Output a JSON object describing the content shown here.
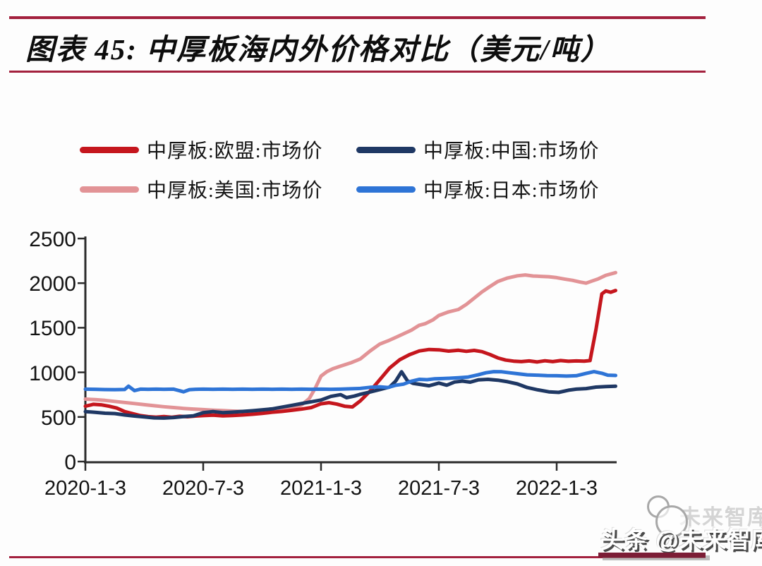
{
  "figure": {
    "title": "图表 45: 中厚板海内外价格对比（美元/吨）",
    "watermark": {
      "prefix": "头条",
      "handle": "@未来智库",
      "ghost": "未来智库"
    },
    "colors": {
      "rule": "#a3213e",
      "watermark_line": "#7c1d36",
      "axis": "#2b2b2b"
    }
  },
  "chart_data": {
    "type": "line",
    "title": "中厚板海内外价格对比",
    "unit": "美元/吨",
    "grid": false,
    "legend_position": "top",
    "x_axis": {
      "tick_labels": [
        "2020-1-3",
        "2020-7-3",
        "2021-1-3",
        "2021-7-3",
        "2022-1-3"
      ],
      "tick_months": [
        0,
        6,
        12,
        18,
        24
      ],
      "range_months": [
        0,
        27
      ]
    },
    "y_axis": {
      "ticks": [
        0,
        500,
        1000,
        1500,
        2000,
        2500
      ],
      "tick_labels": [
        "0",
        "500",
        "1000",
        "1500",
        "2000",
        "2500"
      ],
      "range": [
        0,
        2500
      ]
    },
    "z_order": [
      2,
      0,
      1,
      3
    ],
    "series": [
      {
        "id": "eu",
        "name": "中厚板:欧盟:市场价",
        "color": "#c5161d",
        "points": [
          [
            0,
            620
          ],
          [
            0.4,
            642
          ],
          [
            0.8,
            636
          ],
          [
            1.2,
            620
          ],
          [
            1.6,
            600
          ],
          [
            2,
            560
          ],
          [
            2.4,
            538
          ],
          [
            2.8,
            515
          ],
          [
            3.2,
            503
          ],
          [
            3.6,
            498
          ],
          [
            4,
            505
          ],
          [
            4.4,
            497
          ],
          [
            4.8,
            507
          ],
          [
            5.2,
            502
          ],
          [
            5.6,
            510
          ],
          [
            6,
            515
          ],
          [
            6.5,
            520
          ],
          [
            7,
            512
          ],
          [
            7.5,
            517
          ],
          [
            8,
            522
          ],
          [
            8.5,
            530
          ],
          [
            9,
            540
          ],
          [
            9.5,
            552
          ],
          [
            10,
            562
          ],
          [
            10.5,
            574
          ],
          [
            11,
            588
          ],
          [
            11.5,
            605
          ],
          [
            12,
            648
          ],
          [
            12.4,
            660
          ],
          [
            12.8,
            644
          ],
          [
            13.2,
            620
          ],
          [
            13.6,
            612
          ],
          [
            14,
            680
          ],
          [
            14.5,
            790
          ],
          [
            15,
            920
          ],
          [
            15.5,
            1050
          ],
          [
            16,
            1140
          ],
          [
            16.5,
            1198
          ],
          [
            17,
            1240
          ],
          [
            17.5,
            1256
          ],
          [
            18,
            1252
          ],
          [
            18.5,
            1238
          ],
          [
            19,
            1248
          ],
          [
            19.4,
            1236
          ],
          [
            19.8,
            1246
          ],
          [
            20.2,
            1232
          ],
          [
            20.6,
            1200
          ],
          [
            21,
            1162
          ],
          [
            21.4,
            1138
          ],
          [
            21.8,
            1126
          ],
          [
            22.2,
            1120
          ],
          [
            22.6,
            1128
          ],
          [
            23,
            1116
          ],
          [
            23.4,
            1130
          ],
          [
            23.8,
            1120
          ],
          [
            24.2,
            1132
          ],
          [
            24.6,
            1124
          ],
          [
            25,
            1128
          ],
          [
            25.4,
            1126
          ],
          [
            25.7,
            1132
          ],
          [
            26,
            1480
          ],
          [
            26.3,
            1880
          ],
          [
            26.5,
            1912
          ],
          [
            26.75,
            1898
          ],
          [
            27,
            1918
          ]
        ]
      },
      {
        "id": "china",
        "name": "中厚板:中国:市场价",
        "color": "#1f3864",
        "points": [
          [
            0,
            560
          ],
          [
            0.5,
            552
          ],
          [
            1,
            542
          ],
          [
            1.5,
            538
          ],
          [
            2,
            522
          ],
          [
            2.5,
            510
          ],
          [
            3,
            500
          ],
          [
            3.5,
            490
          ],
          [
            4,
            487
          ],
          [
            4.5,
            494
          ],
          [
            5,
            504
          ],
          [
            5.5,
            512
          ],
          [
            6,
            548
          ],
          [
            6.5,
            560
          ],
          [
            7,
            548
          ],
          [
            7.5,
            554
          ],
          [
            8,
            562
          ],
          [
            8.5,
            570
          ],
          [
            9,
            580
          ],
          [
            9.5,
            590
          ],
          [
            10,
            610
          ],
          [
            10.5,
            630
          ],
          [
            11,
            650
          ],
          [
            11.5,
            670
          ],
          [
            12,
            690
          ],
          [
            12.5,
            730
          ],
          [
            13,
            750
          ],
          [
            13.3,
            716
          ],
          [
            13.7,
            734
          ],
          [
            14,
            754
          ],
          [
            14.5,
            780
          ],
          [
            15,
            808
          ],
          [
            15.5,
            836
          ],
          [
            15.8,
            902
          ],
          [
            16.1,
            1006
          ],
          [
            16.4,
            905
          ],
          [
            16.7,
            876
          ],
          [
            17,
            866
          ],
          [
            17.5,
            850
          ],
          [
            18,
            880
          ],
          [
            18.4,
            856
          ],
          [
            18.8,
            892
          ],
          [
            19.2,
            902
          ],
          [
            19.6,
            890
          ],
          [
            20,
            915
          ],
          [
            20.5,
            922
          ],
          [
            21,
            912
          ],
          [
            21.5,
            895
          ],
          [
            22,
            870
          ],
          [
            22.5,
            830
          ],
          [
            23,
            805
          ],
          [
            23.6,
            782
          ],
          [
            24.1,
            775
          ],
          [
            24.6,
            800
          ],
          [
            25,
            812
          ],
          [
            25.5,
            818
          ],
          [
            26,
            835
          ],
          [
            26.5,
            840
          ],
          [
            27,
            845
          ]
        ]
      },
      {
        "id": "us",
        "name": "中厚板:美国:市场价",
        "color": "#e29396",
        "points": [
          [
            0,
            700
          ],
          [
            0.5,
            694
          ],
          [
            1,
            686
          ],
          [
            1.5,
            674
          ],
          [
            2,
            662
          ],
          [
            2.5,
            650
          ],
          [
            3,
            638
          ],
          [
            3.5,
            626
          ],
          [
            4,
            615
          ],
          [
            4.5,
            605
          ],
          [
            5,
            596
          ],
          [
            5.5,
            589
          ],
          [
            6,
            582
          ],
          [
            6.5,
            576
          ],
          [
            7,
            571
          ],
          [
            7.5,
            566
          ],
          [
            8,
            562
          ],
          [
            8.5,
            559
          ],
          [
            9,
            562
          ],
          [
            9.5,
            568
          ],
          [
            10,
            576
          ],
          [
            10.5,
            590
          ],
          [
            11,
            634
          ],
          [
            11.4,
            706
          ],
          [
            11.7,
            820
          ],
          [
            12,
            958
          ],
          [
            12.3,
            1008
          ],
          [
            12.6,
            1040
          ],
          [
            13,
            1070
          ],
          [
            13.5,
            1105
          ],
          [
            14,
            1150
          ],
          [
            14.5,
            1240
          ],
          [
            15,
            1318
          ],
          [
            15.4,
            1352
          ],
          [
            15.8,
            1392
          ],
          [
            16.2,
            1432
          ],
          [
            16.6,
            1472
          ],
          [
            17,
            1528
          ],
          [
            17.3,
            1545
          ],
          [
            17.7,
            1588
          ],
          [
            18,
            1638
          ],
          [
            18.5,
            1678
          ],
          [
            19,
            1705
          ],
          [
            19.4,
            1762
          ],
          [
            19.8,
            1832
          ],
          [
            20.2,
            1902
          ],
          [
            20.6,
            1962
          ],
          [
            21,
            2018
          ],
          [
            21.5,
            2058
          ],
          [
            22,
            2082
          ],
          [
            22.4,
            2092
          ],
          [
            22.8,
            2080
          ],
          [
            23.2,
            2076
          ],
          [
            23.6,
            2072
          ],
          [
            24,
            2062
          ],
          [
            24.4,
            2046
          ],
          [
            24.8,
            2032
          ],
          [
            25.2,
            2012
          ],
          [
            25.5,
            2000
          ],
          [
            25.8,
            2024
          ],
          [
            26.1,
            2046
          ],
          [
            26.5,
            2088
          ],
          [
            27,
            2118
          ]
        ]
      },
      {
        "id": "japan",
        "name": "中厚板:日本:市场价",
        "color": "#2e74d6",
        "points": [
          [
            0,
            812
          ],
          [
            0.5,
            810
          ],
          [
            1,
            807
          ],
          [
            1.5,
            806
          ],
          [
            2,
            808
          ],
          [
            2.2,
            845
          ],
          [
            2.5,
            795
          ],
          [
            2.8,
            812
          ],
          [
            3.2,
            810
          ],
          [
            3.6,
            812
          ],
          [
            4,
            810
          ],
          [
            4.5,
            812
          ],
          [
            5,
            782
          ],
          [
            5.3,
            806
          ],
          [
            5.6,
            810
          ],
          [
            6,
            812
          ],
          [
            6.5,
            810
          ],
          [
            7,
            812
          ],
          [
            7.5,
            810
          ],
          [
            8,
            812
          ],
          [
            8.5,
            810
          ],
          [
            9,
            812
          ],
          [
            9.5,
            810
          ],
          [
            10,
            812
          ],
          [
            10.5,
            810
          ],
          [
            11,
            812
          ],
          [
            11.5,
            810
          ],
          [
            12,
            812
          ],
          [
            12.5,
            810
          ],
          [
            13,
            812
          ],
          [
            13.5,
            816
          ],
          [
            14,
            820
          ],
          [
            14.5,
            832
          ],
          [
            15,
            838
          ],
          [
            15.4,
            830
          ],
          [
            15.8,
            855
          ],
          [
            16.2,
            868
          ],
          [
            16.6,
            900
          ],
          [
            17,
            922
          ],
          [
            17.4,
            918
          ],
          [
            17.8,
            928
          ],
          [
            18.2,
            930
          ],
          [
            18.6,
            934
          ],
          [
            19,
            940
          ],
          [
            19.5,
            948
          ],
          [
            20,
            972
          ],
          [
            20.4,
            995
          ],
          [
            20.8,
            1008
          ],
          [
            21.2,
            1006
          ],
          [
            21.6,
            995
          ],
          [
            22,
            985
          ],
          [
            22.5,
            972
          ],
          [
            23,
            968
          ],
          [
            23.5,
            964
          ],
          [
            24,
            962
          ],
          [
            24.5,
            958
          ],
          [
            25,
            962
          ],
          [
            25.5,
            988
          ],
          [
            25.9,
            1008
          ],
          [
            26.3,
            990
          ],
          [
            26.6,
            968
          ],
          [
            27,
            965
          ]
        ]
      }
    ]
  }
}
